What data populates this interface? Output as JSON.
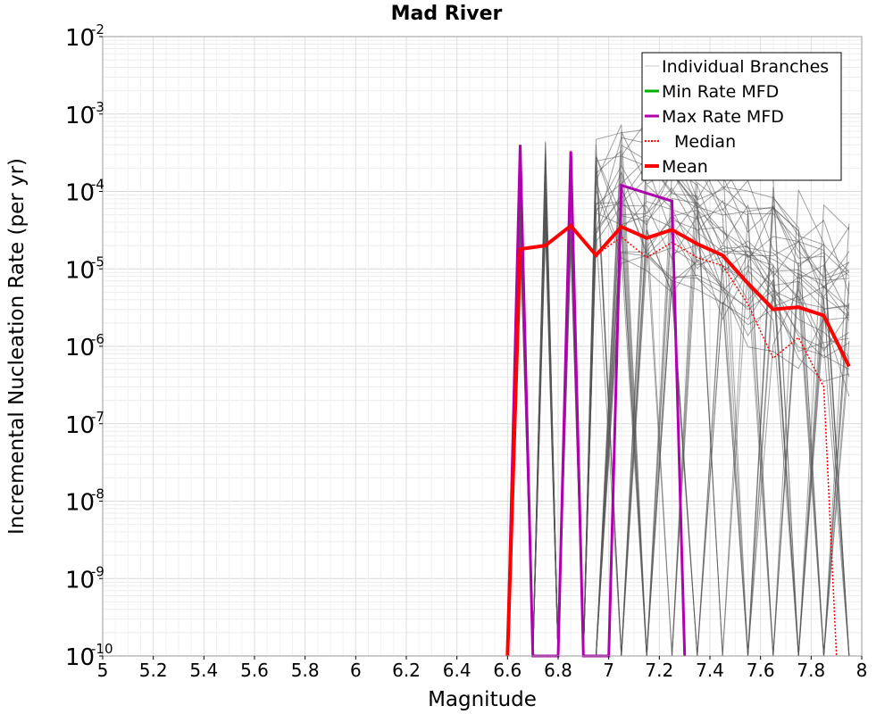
{
  "chart_data": {
    "type": "line",
    "title": "Mad River",
    "xlabel": "Magnitude",
    "ylabel": "Incremental Nucleation Rate (per yr)",
    "xlim": [
      5,
      8
    ],
    "ylim_log10": [
      -10,
      -2
    ],
    "yscale": "log",
    "grid": true,
    "legend_position": "top-right",
    "x_ticks": [
      "5",
      "5.2",
      "5.4",
      "5.6",
      "5.8",
      "6",
      "6.2",
      "6.4",
      "6.6",
      "6.8",
      "7",
      "7.2",
      "7.4",
      "7.6",
      "7.8",
      "8"
    ],
    "y_ticks": [
      {
        "base": "10",
        "exp": "-2",
        "log": -2
      },
      {
        "base": "10",
        "exp": "-3",
        "log": -3
      },
      {
        "base": "10",
        "exp": "-4",
        "log": -4
      },
      {
        "base": "10",
        "exp": "-5",
        "log": -5
      },
      {
        "base": "10",
        "exp": "-6",
        "log": -6
      },
      {
        "base": "10",
        "exp": "-7",
        "log": -7
      },
      {
        "base": "10",
        "exp": "-8",
        "log": -8
      },
      {
        "base": "10",
        "exp": "-9",
        "log": -9
      },
      {
        "base": "10",
        "exp": "-10",
        "log": -10
      }
    ],
    "legend": [
      {
        "label": "Individual Branches",
        "color": "#c8c8c8",
        "style": "thin"
      },
      {
        "label": "Min Rate MFD",
        "color": "#00b000",
        "style": "solid"
      },
      {
        "label": "Max Rate MFD",
        "color": "#b000b0",
        "style": "solid"
      },
      {
        "label": "Median",
        "color": "#ff0000",
        "style": "dotted"
      },
      {
        "label": "Mean",
        "color": "#ff0000",
        "style": "thick"
      }
    ],
    "individual_branches": {
      "name": "Individual Branches",
      "color": "#555555",
      "count": 40,
      "x_range": [
        6.6,
        7.95
      ],
      "note": "dense bundle of logic-tree branch MFDs spanning ~1e-10 to ~4e-4"
    },
    "series": [
      {
        "name": "Mean",
        "color": "#ff0000",
        "style": "thick",
        "x": [
          6.6,
          6.65,
          6.75,
          6.85,
          6.95,
          7.05,
          7.15,
          7.25,
          7.35,
          7.45,
          7.55,
          7.65,
          7.75,
          7.85,
          7.95
        ],
        "y": [
          1e-10,
          1.8e-05,
          2e-05,
          3.6e-05,
          1.5e-05,
          3.5e-05,
          2.5e-05,
          3.2e-05,
          2.1e-05,
          1.5e-05,
          6.5e-06,
          3e-06,
          3.2e-06,
          2.5e-06,
          5.5e-07
        ]
      },
      {
        "name": "Median",
        "color": "#ff0000",
        "style": "dotted",
        "x": [
          6.6,
          6.65,
          6.75,
          6.85,
          6.95,
          7.05,
          7.15,
          7.25,
          7.35,
          7.45,
          7.55,
          7.65,
          7.75,
          7.85,
          7.9
        ],
        "y": [
          1e-10,
          1.8e-05,
          2e-05,
          3.6e-05,
          1.5e-05,
          2.6e-05,
          1.4e-05,
          2.2e-05,
          1.4e-05,
          1.1e-05,
          3.5e-06,
          7e-07,
          1.3e-06,
          3e-07,
          1e-10
        ]
      },
      {
        "name": "Max Rate MFD",
        "color": "#b000b0",
        "style": "solid",
        "x": [
          6.6,
          6.65,
          6.7,
          6.8,
          6.85,
          6.9,
          7.0,
          7.05,
          7.25,
          7.3
        ],
        "y": [
          1e-10,
          0.0004,
          1e-10,
          1e-10,
          0.00033,
          1e-10,
          1e-10,
          0.00012,
          7.5e-05,
          1e-10
        ]
      },
      {
        "name": "Min Rate MFD",
        "color": "#00b000",
        "style": "solid",
        "x": [],
        "y": []
      }
    ]
  }
}
